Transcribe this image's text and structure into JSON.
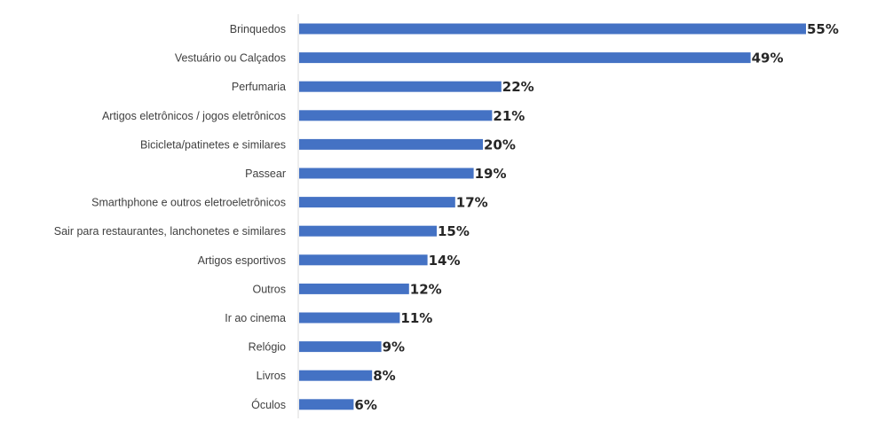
{
  "chart_data": {
    "type": "bar",
    "orientation": "horizontal",
    "title": "",
    "xlabel": "",
    "ylabel": "",
    "categories": [
      "Brinquedos",
      "Vestuário ou Calçados",
      "Perfumaria",
      "Artigos eletrônicos / jogos eletrônicos",
      "Bicicleta/patinetes e similares",
      "Passear",
      "Smarthphone e outros eletroeletrônicos",
      "Sair para restaurantes, lanchonetes e similares",
      "Artigos esportivos",
      "Outros",
      "Ir ao cinema",
      "Relógio",
      "Livros",
      "Óculos"
    ],
    "values": [
      55,
      49,
      22,
      21,
      20,
      19,
      17,
      15,
      14,
      12,
      11,
      9,
      8,
      6
    ],
    "value_labels": [
      "55%",
      "49%",
      "22%",
      "21%",
      "20%",
      "19%",
      "17%",
      "15%",
      "14%",
      "12%",
      "11%",
      "9%",
      "8%",
      "6%"
    ],
    "xlim": [
      0,
      55
    ],
    "bar_color": "#4472C4",
    "axis_color": "#D9D9D9",
    "grid": false,
    "legend": "none"
  }
}
